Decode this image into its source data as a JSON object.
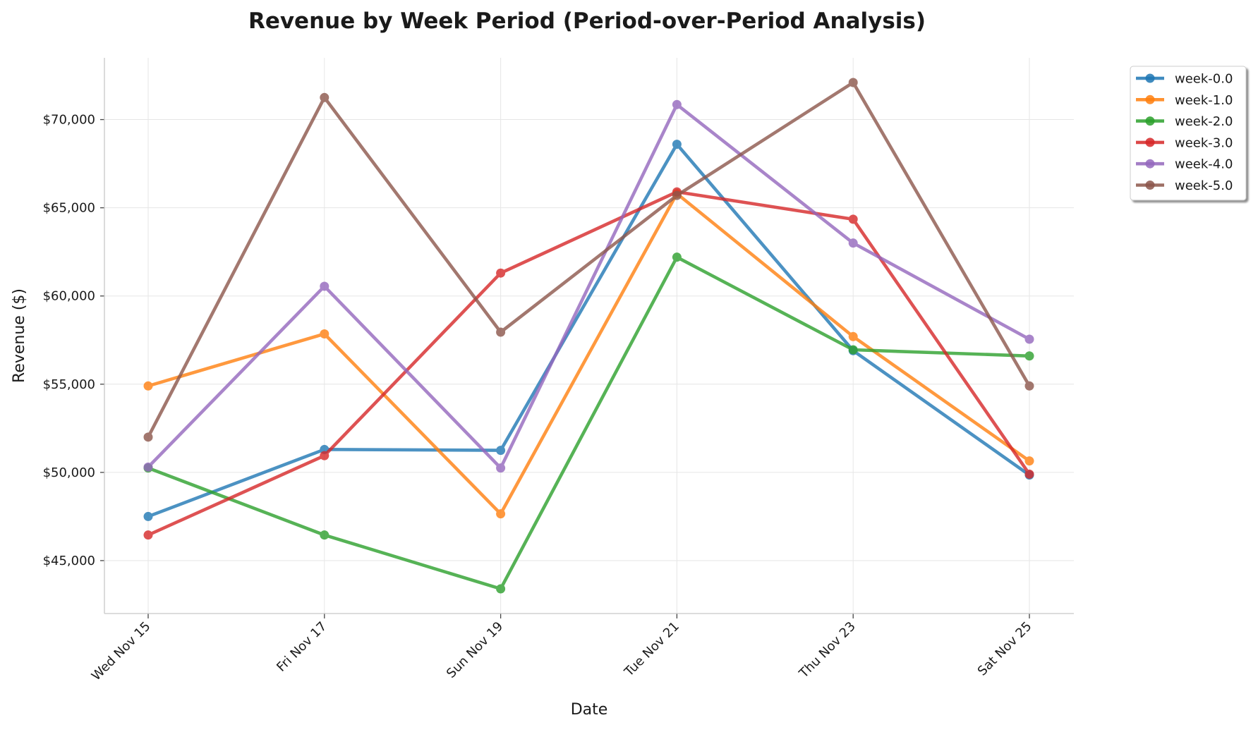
{
  "chart_data": {
    "type": "line",
    "title": "Revenue by Week Period (Period-over-Period Analysis)",
    "xlabel": "Date",
    "ylabel": "Revenue ($)",
    "categories": [
      "Wed Nov 15",
      "Fri Nov 17",
      "Sun Nov 19",
      "Tue Nov 21",
      "Thu Nov 23",
      "Sat Nov 25"
    ],
    "ylim": [
      42000,
      73500
    ],
    "yticks": [
      45000,
      50000,
      55000,
      60000,
      65000,
      70000
    ],
    "ytick_labels": [
      "$45,000",
      "$50,000",
      "$55,000",
      "$60,000",
      "$65,000",
      "$70,000"
    ],
    "grid": true,
    "legend_position": "outside-top-right",
    "series": [
      {
        "name": "week-0.0",
        "color": "#1f77b4",
        "values": [
          47500,
          51300,
          51250,
          68600,
          56900,
          49850
        ]
      },
      {
        "name": "week-1.0",
        "color": "#ff7f0e",
        "values": [
          54900,
          57850,
          47650,
          65800,
          57700,
          50650
        ]
      },
      {
        "name": "week-2.0",
        "color": "#2ca02c",
        "values": [
          50250,
          46450,
          43400,
          62200,
          56950,
          56600
        ]
      },
      {
        "name": "week-3.0",
        "color": "#d62728",
        "values": [
          46450,
          50950,
          61300,
          65900,
          64350,
          49900
        ]
      },
      {
        "name": "week-4.0",
        "color": "#9467bd",
        "values": [
          50300,
          60550,
          50250,
          70850,
          63000,
          57550
        ]
      },
      {
        "name": "week-5.0",
        "color": "#8c564b",
        "values": [
          52000,
          71250,
          57950,
          65700,
          72100,
          54900
        ]
      }
    ]
  }
}
